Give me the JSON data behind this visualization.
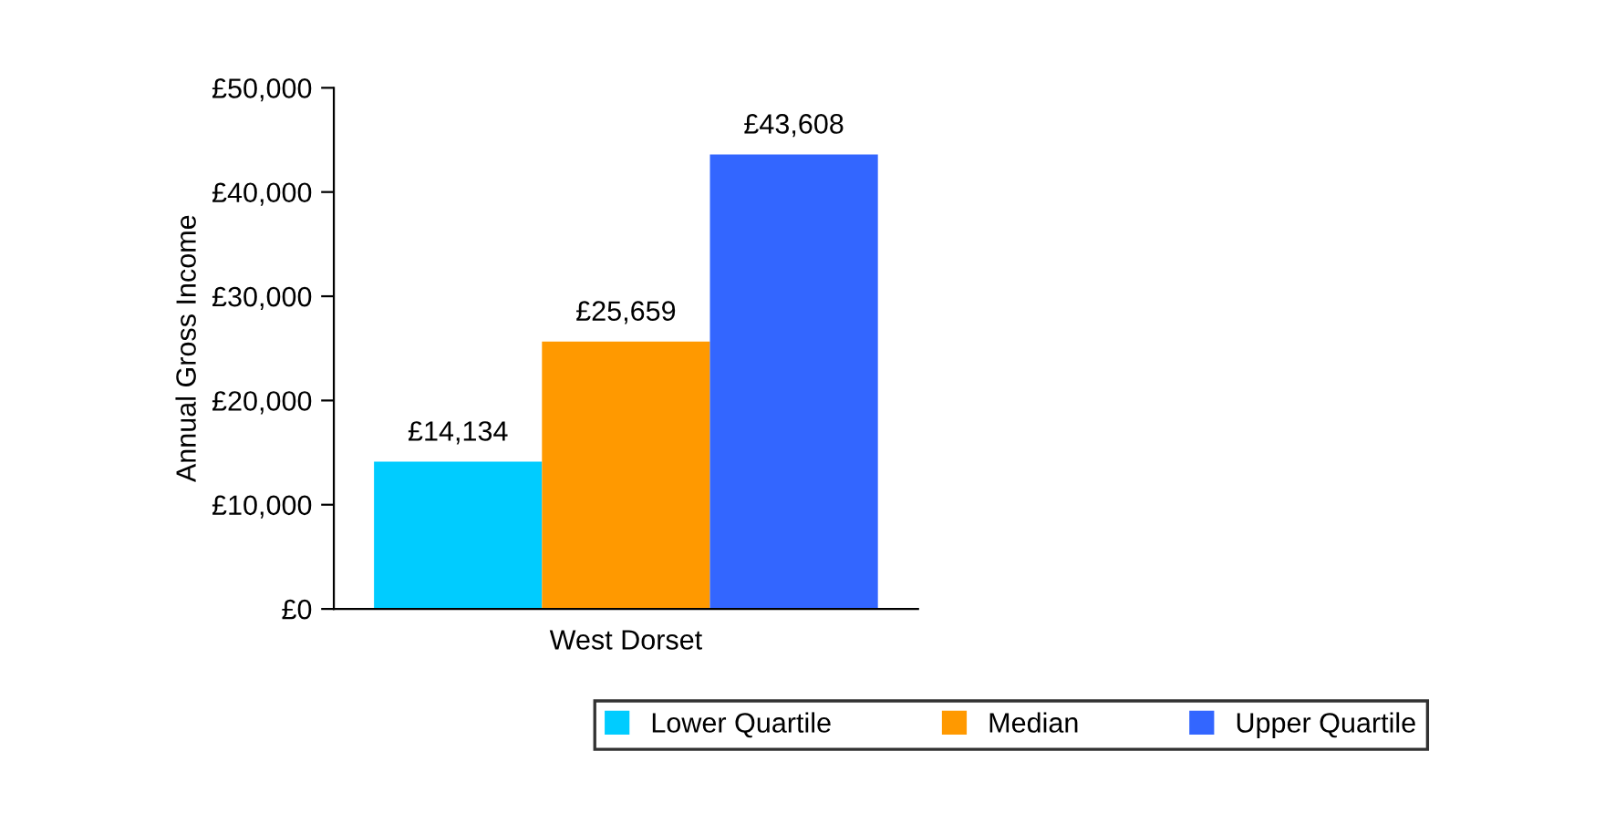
{
  "chart_data": {
    "type": "bar",
    "ylabel": "Annual Gross Income",
    "categories": [
      "West Dorset"
    ],
    "series": [
      {
        "name": "Lower Quartile",
        "color": "#00ccff",
        "values": [
          14134
        ]
      },
      {
        "name": "Median",
        "color": "#ff9900",
        "values": [
          25659
        ]
      },
      {
        "name": "Upper Quartile",
        "color": "#3366ff",
        "values": [
          43608
        ]
      }
    ],
    "ylim": [
      0,
      50000
    ],
    "yticks": [
      {
        "value": 0,
        "label": "£0"
      },
      {
        "value": 10000,
        "label": "£10,000"
      },
      {
        "value": 20000,
        "label": "£20,000"
      },
      {
        "value": 30000,
        "label": "£30,000"
      },
      {
        "value": 40000,
        "label": "£40,000"
      },
      {
        "value": 50000,
        "label": "£50,000"
      }
    ],
    "value_labels": [
      [
        "£14,134"
      ],
      [
        "£25,659"
      ],
      [
        "£43,608"
      ]
    ],
    "grid": false,
    "legend": "bottom"
  }
}
